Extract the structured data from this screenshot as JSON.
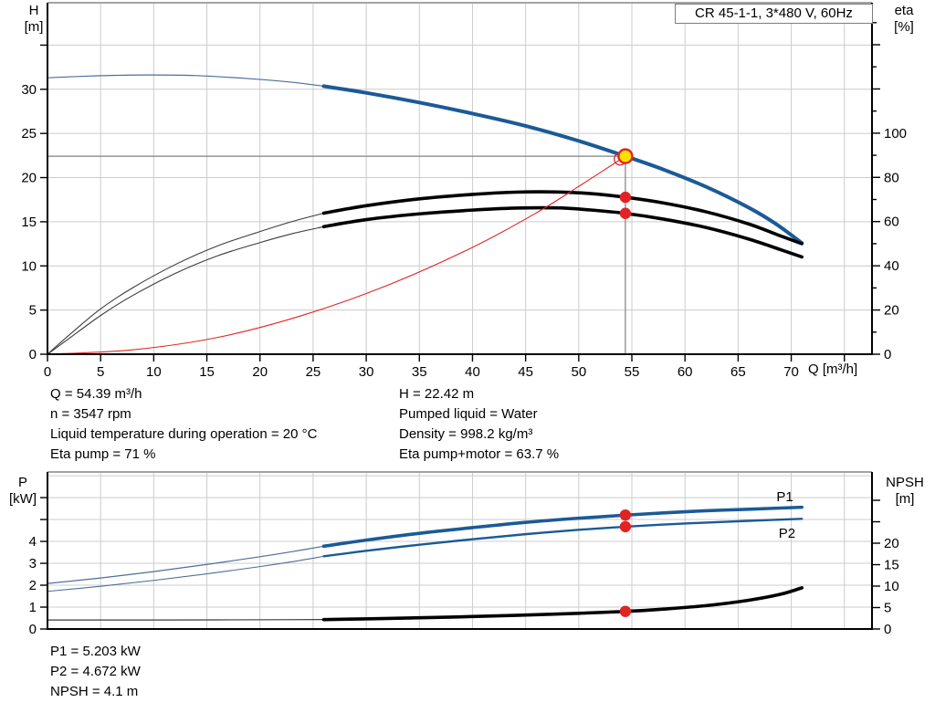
{
  "title_box": "CR 45-1-1, 3*480 V, 60Hz",
  "axes_labels": {
    "h": "H",
    "h_unit": "[m]",
    "eta": "eta",
    "eta_unit": "[%]",
    "q": "Q [m³/h]",
    "p": "P",
    "p_unit": "[kW]",
    "npsh": "NPSH",
    "npsh_unit": "[m]"
  },
  "info_top_left": [
    "Q = 54.39 m³/h",
    "n = 3547 rpm",
    "Liquid temperature during operation = 20 °C",
    "Eta pump = 71 %"
  ],
  "info_top_right": [
    "H = 22.42 m",
    "Pumped liquid = Water",
    "Density = 998.2 kg/m³",
    "Eta pump+motor = 63.7 %"
  ],
  "info_bottom": [
    "P1 = 5.203 kW",
    "P2 = 4.672 kW",
    "NPSH = 4.1 m"
  ],
  "colors": {
    "blue": "#1b5a96",
    "blue_thin": "#4e6e96",
    "black": "#000000",
    "black_thin": "#3c3c3c",
    "red": "#e02424",
    "duty_fill": "#ffe100",
    "grid": "#cccccc",
    "border": "#a3a3a3",
    "crosshair": "#808080",
    "axis": "#000000"
  },
  "chart_data": [
    {
      "type": "line",
      "xlabel": "Q [m³/h]",
      "ylabel_left": "H [m]",
      "ylabel_right": "eta [%]",
      "xlim": [
        0,
        77.6
      ],
      "x_grid_step": 5,
      "x_ticks": [
        0,
        5,
        10,
        15,
        20,
        25,
        30,
        35,
        40,
        45,
        50,
        55,
        60,
        65,
        70,
        75
      ],
      "x_label_max": 70,
      "left": {
        "lim": [
          0,
          39.8
        ],
        "ticks": [
          0,
          5,
          10,
          15,
          20,
          25,
          30,
          35
        ],
        "label_max": 30,
        "grid": [
          5,
          10,
          15,
          20,
          25,
          30,
          35
        ]
      },
      "right": {
        "lim": [
          0,
          159
        ],
        "ticks": [
          0,
          10,
          20,
          30,
          40,
          50,
          60,
          70,
          80,
          90,
          100,
          110,
          120,
          130,
          140,
          150
        ],
        "major_step": 20,
        "label_max": 100
      },
      "duty_point": {
        "Q": 54.39,
        "H": 22.42,
        "eta_pump": 71,
        "eta_pump_motor": 63.7
      },
      "crosshair": {
        "x": 54.39,
        "y": 22.42
      },
      "series": [
        {
          "name": "head-curve",
          "axis": "left",
          "segments": [
            {
              "color": "blue_thin",
              "w": 1.2,
              "points": [
                [
                  0,
                  31.3
                ],
                [
                  4,
                  31.5
                ],
                [
                  9,
                  31.62
                ],
                [
                  14,
                  31.55
                ],
                [
                  19,
                  31.2
                ],
                [
                  23,
                  30.8
                ],
                [
                  26,
                  30.35
                ]
              ]
            },
            {
              "color": "blue",
              "w": 4,
              "points": [
                [
                  26,
                  30.35
                ],
                [
                  30,
                  29.6
                ],
                [
                  35,
                  28.5
                ],
                [
                  40,
                  27.25
                ],
                [
                  45,
                  25.85
                ],
                [
                  50,
                  24.15
                ],
                [
                  54.39,
                  22.42
                ],
                [
                  58,
                  20.9
                ],
                [
                  62,
                  18.95
                ],
                [
                  66,
                  16.6
                ],
                [
                  68.5,
                  14.8
                ],
                [
                  71,
                  12.6
                ]
              ]
            }
          ]
        },
        {
          "name": "eta-pump-curve",
          "axis": "right",
          "segments": [
            {
              "color": "black_thin",
              "w": 1.1,
              "points": [
                [
                  0,
                  0
                ],
                [
                  2,
                  8.5
                ],
                [
                  5,
                  20.5
                ],
                [
                  8,
                  30
                ],
                [
                  12,
                  40.5
                ],
                [
                  16,
                  49
                ],
                [
                  20,
                  55.5
                ],
                [
                  23,
                  60
                ],
                [
                  26,
                  63.8
                ]
              ]
            },
            {
              "color": "black",
              "w": 3.6,
              "points": [
                [
                  26,
                  63.8
                ],
                [
                  30,
                  67.2
                ],
                [
                  35,
                  70.3
                ],
                [
                  40,
                  72.3
                ],
                [
                  44,
                  73.3
                ],
                [
                  48,
                  73.4
                ],
                [
                  51,
                  72.7
                ],
                [
                  54.39,
                  71
                ],
                [
                  58,
                  68.4
                ],
                [
                  62,
                  64.4
                ],
                [
                  66,
                  58.9
                ],
                [
                  69,
                  53.5
                ],
                [
                  71,
                  50
                ]
              ]
            }
          ]
        },
        {
          "name": "eta-pump-motor-curve",
          "axis": "right",
          "segments": [
            {
              "color": "black_thin",
              "w": 1.1,
              "points": [
                [
                  0,
                  0
                ],
                [
                  2,
                  7
                ],
                [
                  5,
                  17.5
                ],
                [
                  8,
                  26.5
                ],
                [
                  12,
                  36.5
                ],
                [
                  16,
                  44.5
                ],
                [
                  20,
                  50.5
                ],
                [
                  23,
                  54.5
                ],
                [
                  26,
                  57.7
                ]
              ]
            },
            {
              "color": "black",
              "w": 3.6,
              "points": [
                [
                  26,
                  57.7
                ],
                [
                  30,
                  60.9
                ],
                [
                  35,
                  63.5
                ],
                [
                  40,
                  65.2
                ],
                [
                  44,
                  66.1
                ],
                [
                  48,
                  66.2
                ],
                [
                  51,
                  65.3
                ],
                [
                  54.39,
                  63.7
                ],
                [
                  58,
                  61.1
                ],
                [
                  62,
                  57.3
                ],
                [
                  66,
                  52.1
                ],
                [
                  69,
                  47.3
                ],
                [
                  71,
                  44
                ]
              ]
            }
          ]
        },
        {
          "name": "system-curve",
          "axis": "left",
          "segments": [
            {
              "color": "red",
              "w": 1.1,
              "points": [
                [
                  0,
                  0
                ],
                [
                  8,
                  0.5
                ],
                [
                  16,
                  1.9
                ],
                [
                  24,
                  4.4
                ],
                [
                  32,
                  7.8
                ],
                [
                  40,
                  12.1
                ],
                [
                  46,
                  16.0
                ],
                [
                  50,
                  19.0
                ],
                [
                  54.39,
                  22.42
                ]
              ]
            }
          ]
        }
      ],
      "markers": [
        {
          "style": "ring",
          "axis": "left",
          "x": 53.9,
          "y": 22.1
        },
        {
          "style": "duty",
          "axis": "left",
          "x": 54.39,
          "y": 22.42
        },
        {
          "style": "dot",
          "axis": "right",
          "x": 54.39,
          "y": 71
        },
        {
          "style": "dot",
          "axis": "right",
          "x": 54.39,
          "y": 63.7
        }
      ]
    },
    {
      "type": "line",
      "xlabel": "",
      "ylabel_left": "P [kW]",
      "ylabel_right": "NPSH [m]",
      "xlim": [
        0,
        77.6
      ],
      "x_grid_step": 5,
      "x_ticks": [],
      "x_label_max": -1,
      "left": {
        "lim": [
          0,
          7.17
        ],
        "ticks": [
          0,
          1,
          2,
          3,
          4,
          5,
          6
        ],
        "label_max": 4,
        "grid": [
          1,
          2,
          3,
          4,
          5,
          6,
          7
        ]
      },
      "right": {
        "lim": [
          0,
          36.6
        ],
        "ticks": [
          0,
          5,
          10,
          15,
          20,
          25,
          30
        ],
        "major_step": 5,
        "label_max": 20
      },
      "duty_point": {
        "Q": 54.39,
        "P1_kW": 5.203,
        "P2_kW": 4.672,
        "NPSH_m": 4.1
      },
      "series": [
        {
          "name": "p1-curve",
          "axis": "left",
          "label": "P1",
          "label_at": [
            69.4,
            5.83
          ],
          "label_color": "blue",
          "segments": [
            {
              "color": "blue_thin",
              "w": 1.2,
              "points": [
                [
                  0,
                  2.08
                ],
                [
                  5,
                  2.33
                ],
                [
                  10,
                  2.62
                ],
                [
                  15,
                  2.95
                ],
                [
                  20,
                  3.3
                ],
                [
                  23,
                  3.53
                ],
                [
                  26,
                  3.78
                ]
              ]
            },
            {
              "color": "blue",
              "w": 3.6,
              "points": [
                [
                  26,
                  3.78
                ],
                [
                  30,
                  4.06
                ],
                [
                  35,
                  4.37
                ],
                [
                  40,
                  4.63
                ],
                [
                  45,
                  4.87
                ],
                [
                  50,
                  5.06
                ],
                [
                  54.39,
                  5.2
                ],
                [
                  58,
                  5.3
                ],
                [
                  62,
                  5.4
                ],
                [
                  66,
                  5.47
                ],
                [
                  71,
                  5.56
                ]
              ]
            }
          ]
        },
        {
          "name": "p2-curve",
          "axis": "left",
          "label": "P2",
          "label_at": [
            69.6,
            4.17
          ],
          "label_color": "blue",
          "segments": [
            {
              "color": "blue_thin",
              "w": 1.1,
              "points": [
                [
                  0,
                  1.72
                ],
                [
                  5,
                  1.95
                ],
                [
                  10,
                  2.22
                ],
                [
                  15,
                  2.52
                ],
                [
                  20,
                  2.85
                ],
                [
                  23,
                  3.07
                ],
                [
                  26,
                  3.32
                ]
              ]
            },
            {
              "color": "blue",
              "w": 2.4,
              "points": [
                [
                  26,
                  3.32
                ],
                [
                  30,
                  3.57
                ],
                [
                  35,
                  3.85
                ],
                [
                  40,
                  4.1
                ],
                [
                  45,
                  4.33
                ],
                [
                  50,
                  4.53
                ],
                [
                  54.39,
                  4.67
                ],
                [
                  58,
                  4.77
                ],
                [
                  62,
                  4.86
                ],
                [
                  66,
                  4.94
                ],
                [
                  71,
                  5.03
                ]
              ]
            }
          ]
        },
        {
          "name": "npsh-curve",
          "axis": "right",
          "segments": [
            {
              "color": "black_thin",
              "w": 1.2,
              "points": [
                [
                  0,
                  2.1
                ],
                [
                  8,
                  2.1
                ],
                [
                  16,
                  2.13
                ],
                [
                  22,
                  2.17
                ],
                [
                  26,
                  2.2
                ]
              ]
            },
            {
              "color": "black",
              "w": 3.6,
              "points": [
                [
                  26,
                  2.2
                ],
                [
                  32,
                  2.45
                ],
                [
                  38,
                  2.78
                ],
                [
                  44,
                  3.18
                ],
                [
                  50,
                  3.66
                ],
                [
                  54.39,
                  4.1
                ],
                [
                  58,
                  4.65
                ],
                [
                  62,
                  5.45
                ],
                [
                  66,
                  6.7
                ],
                [
                  69,
                  8.1
                ],
                [
                  71,
                  9.6
                ]
              ]
            }
          ]
        }
      ],
      "markers": [
        {
          "style": "dot",
          "axis": "left",
          "x": 54.39,
          "y": 5.203
        },
        {
          "style": "dot",
          "axis": "left",
          "x": 54.39,
          "y": 4.672
        },
        {
          "style": "dot",
          "axis": "right",
          "x": 54.39,
          "y": 4.1
        }
      ]
    }
  ]
}
